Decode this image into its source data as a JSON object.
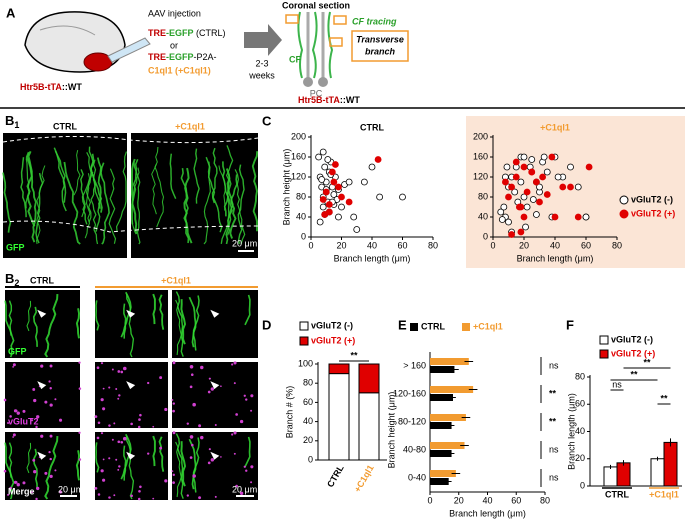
{
  "panel_labels": {
    "a": "A",
    "b1": [
      "B",
      "1"
    ],
    "b2": [
      "B",
      "2"
    ],
    "c": "C",
    "d": "D",
    "e": "E",
    "f": "F"
  },
  "panel_a": {
    "injection": "AAV injection",
    "construct_ctrl": [
      "TRE",
      "-EGFP",
      " (CTRL)"
    ],
    "or": "or",
    "construct_c1ql1": [
      "TRE",
      "-EGFP",
      "-P2A-"
    ],
    "construct_c1ql1_2": "C1ql1 (+C1ql1)",
    "duration": [
      "2-3",
      "weeks"
    ],
    "section": "Coronal section",
    "cf": "CF",
    "pc": "PC",
    "tracing": "CF tracing",
    "branch": [
      "Transverse",
      "branch"
    ],
    "mouse": [
      "Htr5B-tTA",
      "::WT"
    ],
    "mouse2": [
      "Htr5B-tTA",
      "::WT"
    ]
  },
  "panel_b1": {
    "ctrl": "CTRL",
    "c1ql1": "+C1ql1",
    "gfp": "GFP",
    "scale": "20 μm"
  },
  "panel_b2": {
    "ctrl": "CTRL",
    "c1ql1": "+C1ql1",
    "rows": [
      "GFP",
      "vGluT2",
      "Merge"
    ],
    "scale": [
      "20 μm",
      "20 μm"
    ]
  },
  "chart_data": [
    {
      "type": "scatter",
      "title": "CTRL",
      "xlabel": "Branch length (μm)",
      "ylabel": "Branch height (μm)",
      "xlim": [
        0,
        80
      ],
      "xticks": [
        0,
        20,
        40,
        60,
        80
      ],
      "ylim": [
        0,
        200
      ],
      "yticks": [
        0,
        40,
        80,
        120,
        160,
        200
      ],
      "series": [
        {
          "color": "#000000",
          "marker": "open",
          "x": [
            5,
            6,
            7,
            8,
            8,
            9,
            10,
            10,
            11,
            12,
            12,
            13,
            14,
            15,
            15,
            16,
            17,
            18,
            20,
            22,
            25,
            28,
            30,
            35,
            40,
            45,
            60,
            6,
            9,
            11,
            13,
            8,
            14,
            18,
            7,
            10
          ],
          "y": [
            160,
            120,
            100,
            80,
            60,
            140,
            110,
            90,
            70,
            130,
            50,
            150,
            100,
            85,
            65,
            120,
            75,
            95,
            60,
            105,
            110,
            40,
            15,
            110,
            140,
            80,
            80,
            30,
            45,
            155,
            125,
            170,
            70,
            40,
            115,
            95
          ]
        },
        {
          "color": "#e00000",
          "marker": "filled",
          "x": [
            8,
            10,
            12,
            14,
            15,
            18,
            20,
            25,
            44,
            12,
            9,
            16
          ],
          "y": [
            75,
            90,
            65,
            130,
            110,
            100,
            80,
            70,
            155,
            50,
            45,
            145
          ]
        }
      ]
    },
    {
      "type": "scatter",
      "title": "+C1ql1",
      "title_color": "#f29b30",
      "background": "#fbe5d6",
      "xlabel": "Branch length (μm)",
      "xlim": [
        0,
        80
      ],
      "xticks": [
        0,
        20,
        40,
        60,
        80
      ],
      "ylim": [
        0,
        200
      ],
      "yticks": [
        0,
        40,
        80,
        120,
        160,
        200
      ],
      "series": [
        {
          "name": "vGluT2 (-)",
          "color": "#000000",
          "marker": "open",
          "label_color": "#000000",
          "x": [
            5,
            8,
            10,
            12,
            15,
            18,
            20,
            22,
            25,
            28,
            30,
            32,
            35,
            38,
            40,
            45,
            50,
            55,
            60,
            8,
            10,
            14,
            16,
            20,
            24,
            28,
            7,
            12,
            18,
            26,
            33,
            42,
            6,
            9,
            60,
            21,
            30
          ],
          "y": [
            50,
            40,
            100,
            120,
            140,
            160,
            80,
            60,
            155,
            110,
            90,
            150,
            130,
            40,
            160,
            120,
            140,
            100,
            40,
            120,
            30,
            90,
            70,
            160,
            140,
            45,
            60,
            10,
            110,
            75,
            160,
            120,
            35,
            140,
            40,
            20,
            100
          ]
        },
        {
          "name": "vGluT2 (+)",
          "color": "#e00000",
          "marker": "filled",
          "label_color": "#e00000",
          "x": [
            10,
            12,
            15,
            18,
            20,
            22,
            25,
            28,
            30,
            35,
            40,
            45,
            50,
            62,
            15,
            20,
            25,
            38,
            55,
            12,
            18,
            32,
            8,
            17
          ],
          "y": [
            80,
            100,
            120,
            60,
            140,
            90,
            130,
            110,
            70,
            85,
            40,
            100,
            100,
            140,
            150,
            40,
            130,
            160,
            40,
            5,
            10,
            120,
            110,
            60
          ]
        }
      ]
    },
    {
      "type": "stacked_bar",
      "ylabel": "Branch # (%)",
      "categories": [
        "CTRL",
        "+C1ql1"
      ],
      "category_colors": [
        "#000000",
        "#f29b30"
      ],
      "ylim": [
        0,
        100
      ],
      "yticks": [
        0,
        20,
        40,
        60,
        80,
        100
      ],
      "annotation": "**",
      "series": [
        {
          "name": "vGluT2 (-)",
          "color": "#ffffff",
          "label_color": "#000000",
          "values": [
            90,
            70
          ]
        },
        {
          "name": "vGluT2 (+)",
          "color": "#e00000",
          "label_color": "#e00000",
          "values": [
            10,
            30
          ]
        }
      ]
    },
    {
      "type": "hbar",
      "xlabel": "Branch length (μm)",
      "ylabel": "Branch height (μm)",
      "categories": [
        "> 160",
        "120-160",
        "80-120",
        "40-80",
        "0-40"
      ],
      "xlim": [
        0,
        80
      ],
      "xticks": [
        0,
        20,
        40,
        60,
        80
      ],
      "significance": [
        "ns",
        "**",
        "**",
        "ns",
        "ns"
      ],
      "series": [
        {
          "name": "CTRL",
          "color": "#000000",
          "values": [
            17,
            16,
            15,
            15,
            13
          ],
          "errors": [
            3,
            2,
            2,
            2,
            2
          ]
        },
        {
          "name": "+C1ql1",
          "color": "#f29b30",
          "values": [
            27,
            30,
            25,
            24,
            18
          ],
          "errors": [
            3,
            3,
            3,
            3,
            3
          ]
        }
      ]
    },
    {
      "type": "bar",
      "ylabel": "Branch length (μm)",
      "categories": [
        "CTRL",
        "+C1ql1"
      ],
      "category_colors": [
        "#000000",
        "#f29b30"
      ],
      "ylim": [
        0,
        80
      ],
      "yticks": [
        0,
        20,
        40,
        60,
        80
      ],
      "comparisons": [
        "ns",
        "**",
        "**",
        "**"
      ],
      "series": [
        {
          "name": "vGluT2 (-)",
          "color": "#ffffff",
          "label_color": "#000000",
          "values": [
            14,
            20
          ],
          "errors": [
            1.5,
            1.5
          ]
        },
        {
          "name": "vGluT2 (+)",
          "color": "#e00000",
          "label_color": "#e00000",
          "values": [
            17,
            32
          ],
          "errors": [
            2,
            3
          ]
        }
      ]
    }
  ]
}
